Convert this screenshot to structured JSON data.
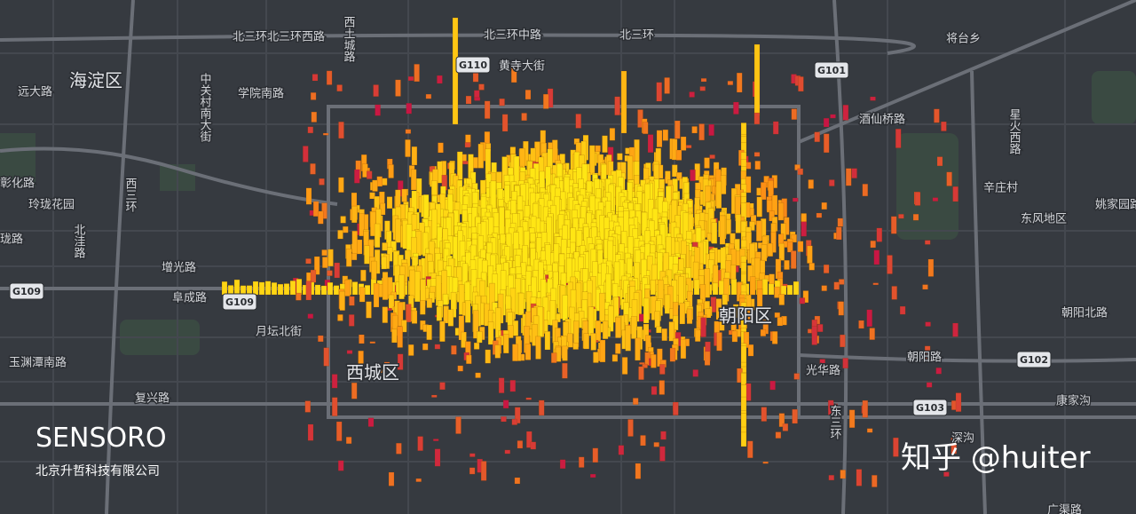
{
  "map": {
    "labels": [
      "海淀区",
      "远大路",
      "学院南路",
      "北三环北三环西路",
      "北三环中路",
      "北三环",
      "黄寺大街",
      "将台乡",
      "西土城路",
      "中关村南大街",
      "彰化路",
      "玲珑花园",
      "珑路",
      "北洼路",
      "西三环",
      "增光路",
      "阜成路",
      "月坛北街",
      "玉渊潭南路",
      "复兴路",
      "西城区",
      "朝阳区",
      "朝阳北路",
      "朝阳路",
      "康家沟",
      "深沟",
      "辛庄村",
      "东风地区",
      "姚家园路",
      "星火西路",
      "酒仙桥路",
      "东三环",
      "光华路",
      "广渠路"
    ],
    "shields": [
      "G110",
      "G101",
      "G109",
      "G109",
      "G102",
      "G103"
    ]
  },
  "brand": {
    "name": "SENSORO",
    "company": "北京升哲科技有限公司"
  },
  "watermark": "知乎 @huiter"
}
